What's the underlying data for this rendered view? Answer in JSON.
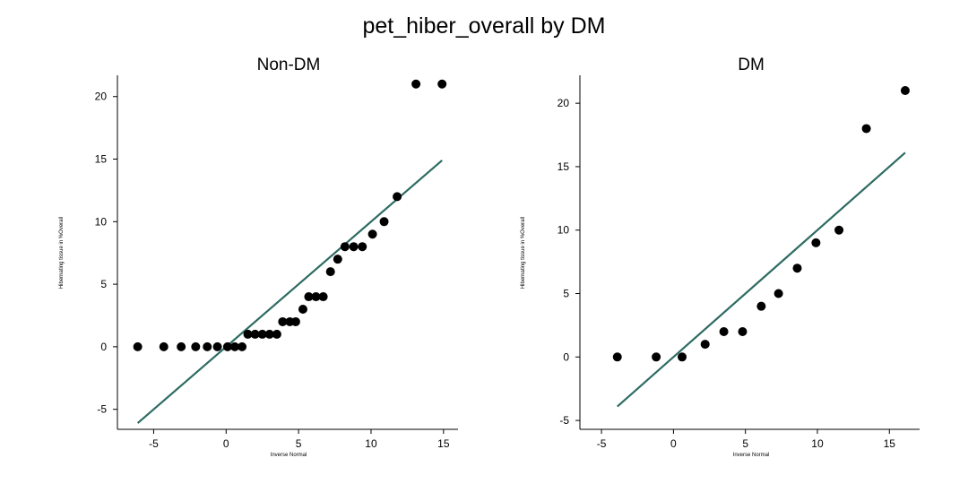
{
  "figure": {
    "title": "pet_hiber_overall by DM"
  },
  "chart_data": [
    {
      "type": "scatter",
      "title": "Non-DM",
      "xlabel": "Inverse Normal",
      "ylabel": "Hibernating tissue in %Overall",
      "xlim": [
        -7.5,
        16
      ],
      "ylim": [
        -6.6,
        21.7
      ],
      "xticks": [
        -5,
        0,
        5,
        10,
        15
      ],
      "yticks": [
        -5,
        0,
        5,
        10,
        15,
        20
      ],
      "grid": false,
      "reference_line": {
        "x": [
          -6.1,
          14.9
        ],
        "y": [
          -6.1,
          14.9
        ]
      },
      "points": [
        [
          -6.1,
          0
        ],
        [
          -4.3,
          0
        ],
        [
          -3.1,
          0
        ],
        [
          -2.1,
          0
        ],
        [
          -1.3,
          0
        ],
        [
          -0.6,
          0
        ],
        [
          0.1,
          0
        ],
        [
          0.6,
          0
        ],
        [
          1.1,
          0
        ],
        [
          1.5,
          1
        ],
        [
          2.0,
          1
        ],
        [
          2.5,
          1
        ],
        [
          3.0,
          1
        ],
        [
          3.5,
          1
        ],
        [
          3.9,
          2
        ],
        [
          4.4,
          2
        ],
        [
          4.8,
          2
        ],
        [
          5.3,
          3
        ],
        [
          5.7,
          4
        ],
        [
          6.2,
          4
        ],
        [
          6.7,
          4
        ],
        [
          7.2,
          6
        ],
        [
          7.7,
          7
        ],
        [
          8.2,
          8
        ],
        [
          8.8,
          8
        ],
        [
          9.4,
          8
        ],
        [
          10.1,
          9
        ],
        [
          10.9,
          10
        ],
        [
          11.8,
          12
        ],
        [
          13.1,
          21
        ],
        [
          14.9,
          21
        ]
      ]
    },
    {
      "type": "scatter",
      "title": "DM",
      "xlabel": "Inverse Normal",
      "ylabel": "Hibernating tissue in %Overall",
      "xlim": [
        -6.5,
        17.1
      ],
      "ylim": [
        -5.7,
        22.2
      ],
      "xticks": [
        -5,
        0,
        5,
        10,
        15
      ],
      "yticks": [
        -5,
        0,
        5,
        10,
        15,
        20
      ],
      "grid": false,
      "reference_line": {
        "x": [
          -3.9,
          16.1
        ],
        "y": [
          -3.9,
          16.1
        ]
      },
      "points": [
        [
          -3.9,
          0
        ],
        [
          -1.2,
          0
        ],
        [
          0.6,
          0
        ],
        [
          2.2,
          1
        ],
        [
          3.5,
          2
        ],
        [
          4.8,
          2
        ],
        [
          6.1,
          4
        ],
        [
          7.3,
          5
        ],
        [
          8.6,
          7
        ],
        [
          9.9,
          9
        ],
        [
          11.5,
          10
        ],
        [
          13.4,
          18
        ],
        [
          16.1,
          21
        ]
      ]
    }
  ]
}
